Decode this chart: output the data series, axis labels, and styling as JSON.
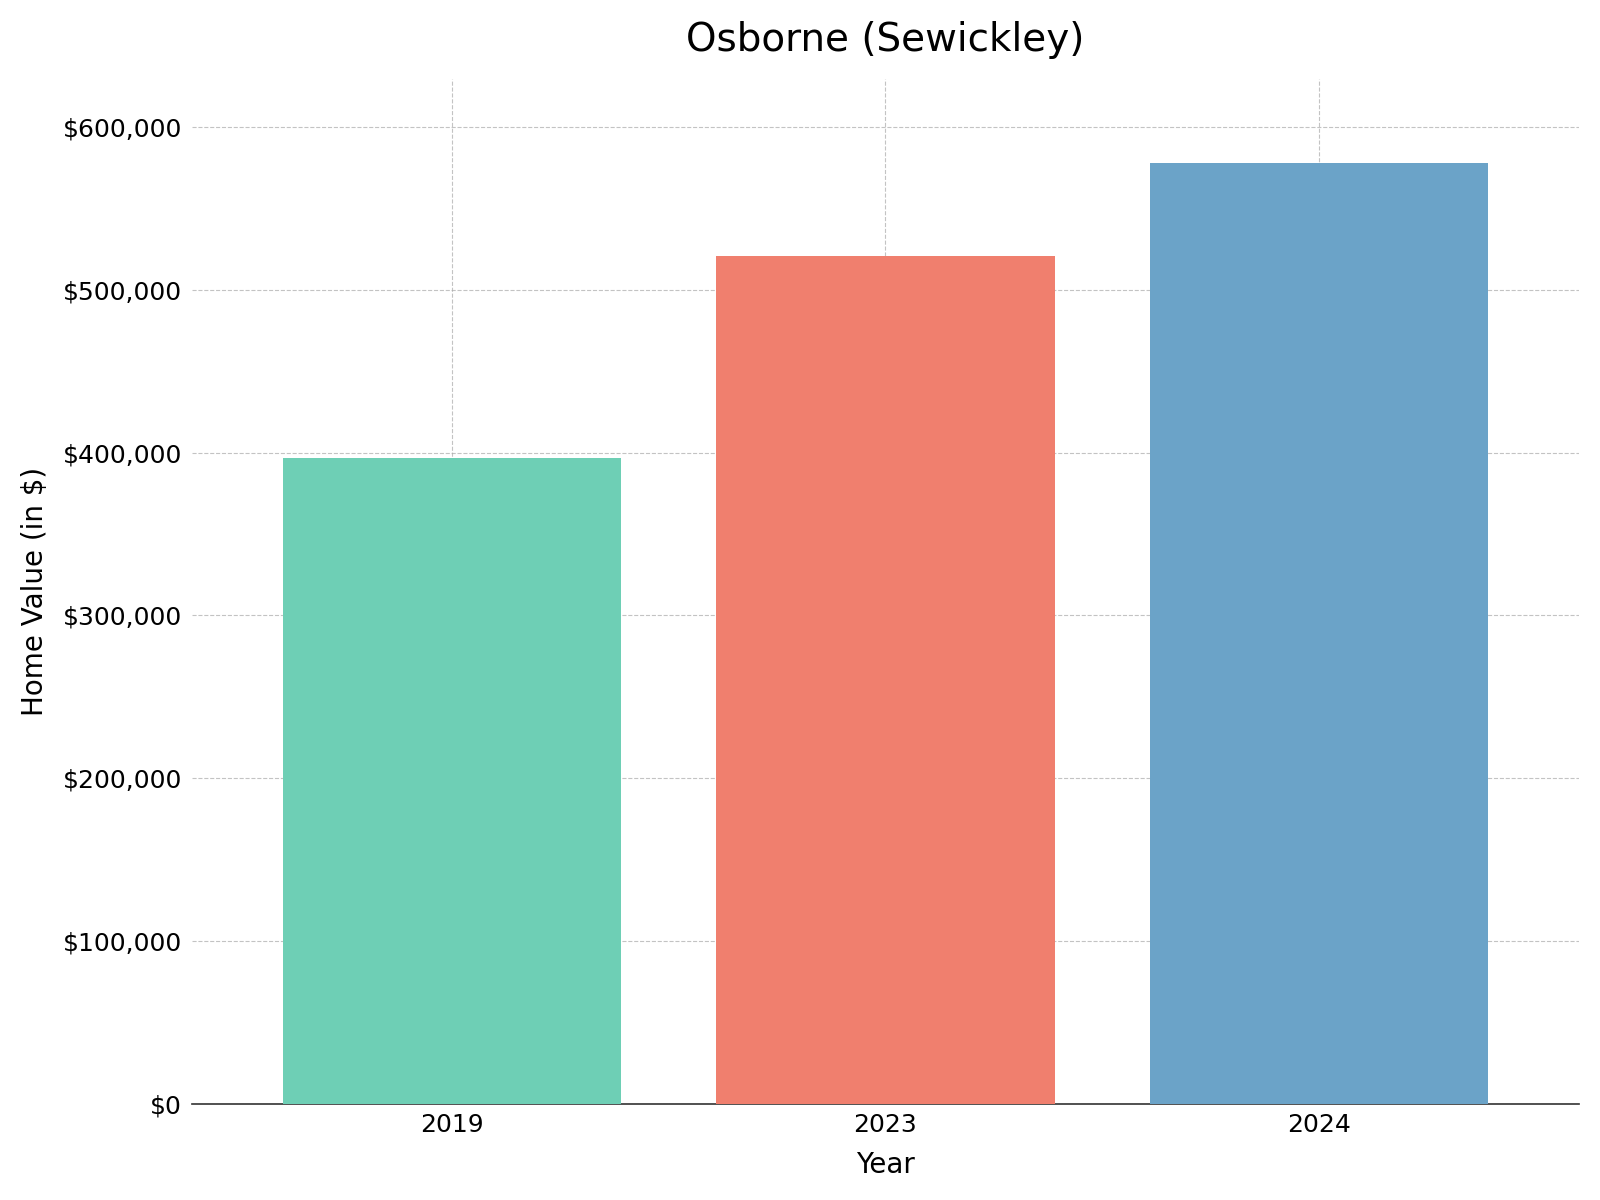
{
  "title": "Osborne (Sewickley)",
  "categories": [
    "2019",
    "2023",
    "2024"
  ],
  "values": [
    397000,
    521000,
    578000
  ],
  "bar_colors": [
    "#6ecfb5",
    "#f07f6e",
    "#6ba3c8"
  ],
  "xlabel": "Year",
  "ylabel": "Home Value (in $)",
  "ylim": [
    0,
    630000
  ],
  "yticks": [
    0,
    100000,
    200000,
    300000,
    400000,
    500000,
    600000
  ],
  "title_fontsize": 28,
  "axis_label_fontsize": 20,
  "tick_fontsize": 18,
  "background_color": "#ffffff",
  "grid_color": "#aaaaaa",
  "bar_width": 0.78,
  "xlim": [
    -0.6,
    2.6
  ]
}
